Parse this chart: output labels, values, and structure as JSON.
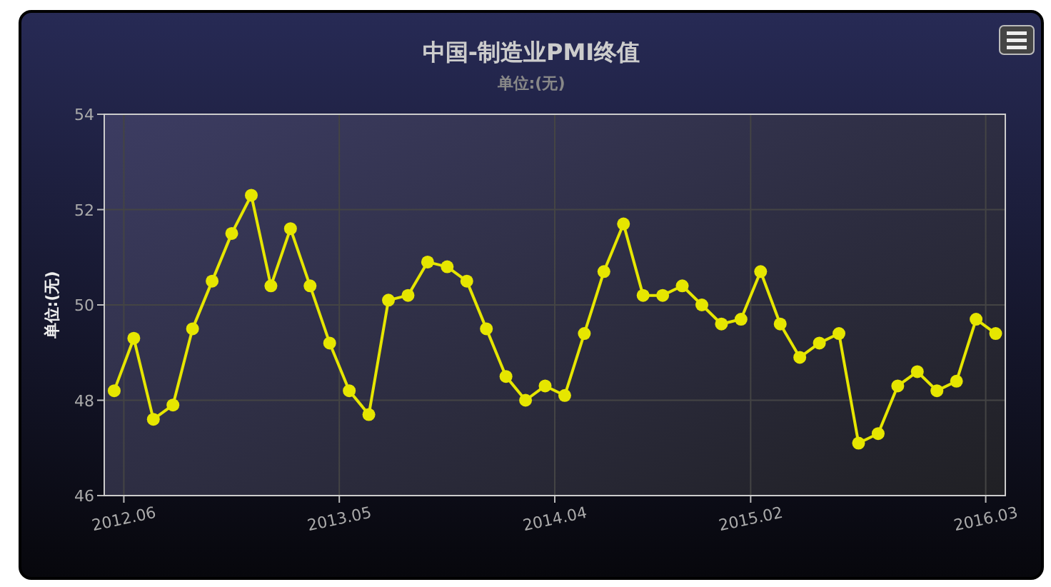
{
  "chart_data": {
    "type": "line",
    "title": "中国-制造业PMI终值",
    "subtitle": "单位:(无)",
    "ylabel": "单位:(无)",
    "x": [
      "2012-06",
      "2012-07",
      "2012-08",
      "2012-09",
      "2012-10",
      "2012-11",
      "2012-12",
      "2013-01",
      "2013-02",
      "2013-03",
      "2013-04",
      "2013-05",
      "2013-06",
      "2013-07",
      "2013-08",
      "2013-09",
      "2013-10",
      "2013-11",
      "2013-12",
      "2014-01",
      "2014-02",
      "2014-03",
      "2014-04",
      "2014-05",
      "2014-06",
      "2014-07",
      "2014-08",
      "2014-09",
      "2014-10",
      "2014-11",
      "2014-12",
      "2015-01",
      "2015-02",
      "2015-03",
      "2015-04",
      "2015-05",
      "2015-06",
      "2015-07",
      "2015-08",
      "2015-09",
      "2015-10",
      "2015-11",
      "2015-12",
      "2016-01",
      "2016-02",
      "2016-03"
    ],
    "series": [
      {
        "color": "#e6e600",
        "values": [
          48.2,
          49.3,
          47.6,
          47.9,
          49.5,
          50.5,
          51.5,
          52.3,
          50.4,
          51.6,
          50.4,
          49.2,
          48.2,
          47.7,
          50.1,
          50.2,
          50.9,
          50.8,
          50.5,
          49.5,
          48.5,
          48.0,
          48.3,
          48.1,
          49.4,
          50.7,
          51.7,
          50.2,
          50.2,
          50.4,
          50.0,
          49.6,
          49.7,
          50.7,
          49.6,
          48.9,
          49.2,
          49.4,
          47.1,
          47.3,
          48.3,
          48.6,
          48.2,
          48.4,
          49.7,
          49.4
        ]
      }
    ],
    "xlim": [
      "2012-05-16",
      "2016-03-16"
    ],
    "xticks": [
      {
        "value": "2012-06-16",
        "label": "2012.06"
      },
      {
        "value": "2013-05-16",
        "label": "2013.05"
      },
      {
        "value": "2014-04-16",
        "label": "2014.04"
      },
      {
        "value": "2015-02-16",
        "label": "2015.02"
      },
      {
        "value": "2016-02-16",
        "label": "2016.03"
      }
    ],
    "ylim": [
      46,
      54
    ],
    "yticks": [
      46,
      48,
      50,
      52,
      54
    ],
    "grid": true,
    "marker": "circle",
    "line_style": "solid"
  }
}
